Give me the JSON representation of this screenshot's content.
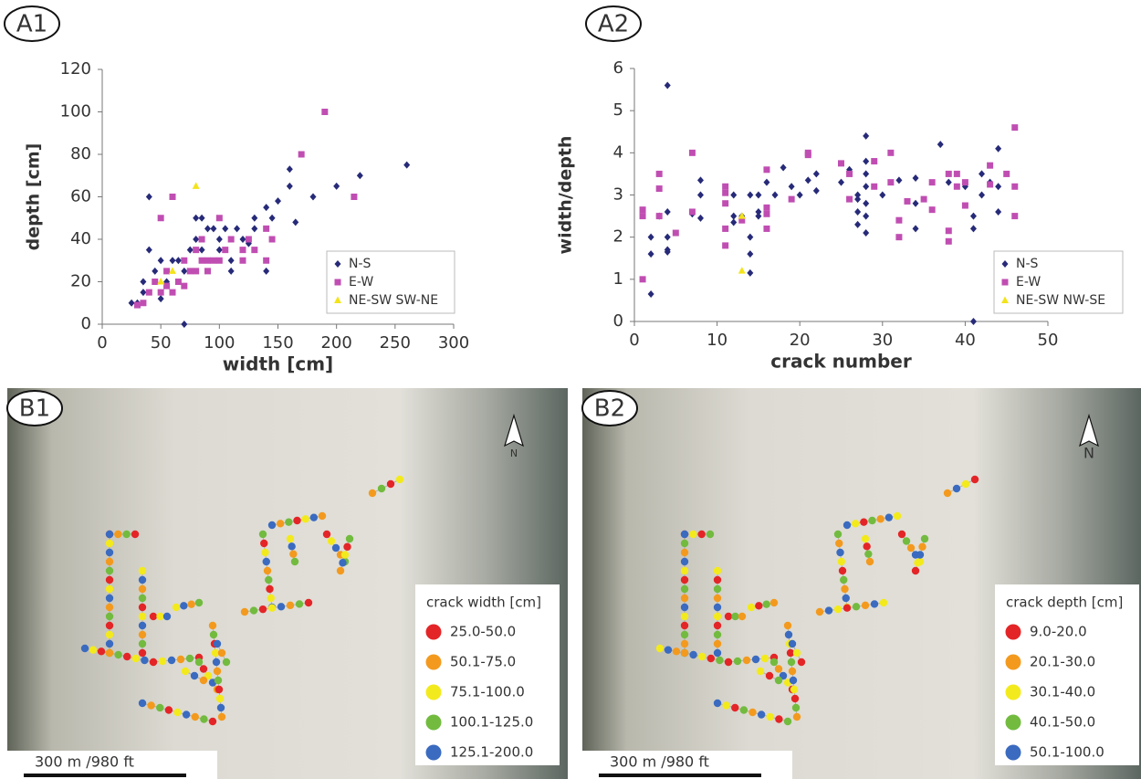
{
  "chart_data": [
    {
      "type": "scatter",
      "panel": "A1",
      "xlabel": "width [cm]",
      "ylabel": "depth [cm]",
      "xlim": [
        0,
        300
      ],
      "xticks": [
        0,
        50,
        100,
        150,
        200,
        250,
        300
      ],
      "ylim": [
        0,
        120
      ],
      "yticks": [
        0,
        20,
        40,
        60,
        80,
        100,
        120
      ],
      "legend": "lower right",
      "series": [
        {
          "name": "N-S",
          "color": "#262a78",
          "marker": "diamond",
          "x": [
            25,
            30,
            35,
            35,
            40,
            40,
            45,
            50,
            50,
            55,
            60,
            65,
            70,
            70,
            75,
            80,
            80,
            85,
            85,
            90,
            95,
            100,
            100,
            105,
            110,
            110,
            115,
            120,
            125,
            130,
            130,
            140,
            140,
            145,
            150,
            160,
            160,
            165,
            180,
            200,
            220,
            260
          ],
          "values": [
            10,
            10,
            15,
            20,
            35,
            60,
            25,
            12,
            30,
            20,
            30,
            30,
            0,
            25,
            35,
            40,
            50,
            50,
            35,
            45,
            45,
            40,
            35,
            45,
            30,
            25,
            45,
            40,
            38,
            45,
            50,
            25,
            55,
            50,
            58,
            65,
            73,
            48,
            60,
            65,
            70,
            75
          ]
        },
        {
          "name": "E-W",
          "color": "#c04eb2",
          "marker": "square",
          "x": [
            30,
            35,
            40,
            45,
            50,
            50,
            55,
            55,
            60,
            60,
            65,
            70,
            70,
            75,
            80,
            80,
            85,
            85,
            90,
            90,
            95,
            100,
            100,
            105,
            110,
            120,
            120,
            125,
            130,
            140,
            140,
            145,
            170,
            190,
            215
          ],
          "values": [
            9,
            10,
            15,
            20,
            15,
            50,
            18,
            25,
            60,
            15,
            20,
            18,
            30,
            25,
            25,
            35,
            30,
            40,
            30,
            25,
            30,
            30,
            50,
            35,
            40,
            30,
            35,
            40,
            35,
            45,
            30,
            40,
            80,
            100,
            60
          ]
        },
        {
          "name": "NE-SW SW-NE",
          "color": "#f3e31b",
          "marker": "triangle",
          "x": [
            50,
            60,
            80
          ],
          "values": [
            20,
            25,
            65
          ]
        }
      ]
    },
    {
      "type": "scatter",
      "panel": "A2",
      "xlabel": "crack number",
      "ylabel": "width/depth",
      "xlim": [
        0,
        50
      ],
      "xticks": [
        0,
        10,
        20,
        30,
        40,
        50
      ],
      "ylim": [
        0,
        6
      ],
      "yticks": [
        0,
        1,
        2,
        3,
        4,
        5,
        6
      ],
      "legend": "lower right",
      "series": [
        {
          "name": "N-S",
          "color": "#262a78",
          "marker": "diamond",
          "x": [
            2,
            2,
            2,
            3,
            4,
            4,
            4,
            4,
            4,
            7,
            8,
            8,
            8,
            12,
            12,
            12,
            13,
            14,
            14,
            14,
            14,
            15,
            15,
            15,
            16,
            17,
            18,
            19,
            20,
            21,
            22,
            22,
            25,
            26,
            27,
            27,
            27,
            27,
            28,
            28,
            28,
            28,
            28,
            28,
            28,
            30,
            32,
            34,
            34,
            34,
            37,
            38,
            40,
            41,
            41,
            41,
            42,
            42,
            43,
            44,
            44,
            44
          ],
          "values": [
            0.65,
            1.6,
            2,
            2.5,
            1.65,
            1.7,
            2,
            5.6,
            2.6,
            2.55,
            3,
            3.35,
            2.45,
            2.35,
            2.5,
            3,
            2.5,
            1.15,
            1.6,
            2,
            3,
            2.5,
            2.6,
            3,
            3.3,
            3,
            3.65,
            3.2,
            3,
            3.35,
            3.1,
            3.5,
            3.3,
            3.6,
            3,
            2.9,
            2.6,
            2.3,
            4.4,
            3.8,
            3.5,
            3.2,
            2.8,
            2.5,
            2.1,
            3,
            3.35,
            3.4,
            2.8,
            2.2,
            4.2,
            3.3,
            3.2,
            2.5,
            2.2,
            0,
            3.5,
            3,
            3.3,
            4.1,
            3.2,
            2.6
          ]
        },
        {
          "name": "E-W",
          "color": "#c04eb2",
          "marker": "square",
          "x": [
            1,
            1,
            1,
            3,
            3,
            3,
            5,
            7,
            7,
            11,
            11,
            11,
            11,
            11,
            13,
            16,
            16,
            16,
            16,
            19,
            21,
            21,
            25,
            26,
            26,
            29,
            29,
            31,
            31,
            32,
            32,
            33,
            35,
            36,
            36,
            38,
            38,
            38,
            39,
            39,
            40,
            40,
            43,
            43,
            45,
            46,
            46,
            46
          ],
          "values": [
            1,
            2.5,
            2.65,
            2.5,
            3.15,
            3.5,
            2.1,
            2.6,
            4,
            1.8,
            2.2,
            2.8,
            3.05,
            3.2,
            2.4,
            2.2,
            2.55,
            2.7,
            3.6,
            2.9,
            4,
            3.95,
            3.75,
            3.5,
            2.9,
            3.8,
            3.2,
            3.3,
            4,
            2.4,
            2,
            2.85,
            2.9,
            2.65,
            3.3,
            1.9,
            2.15,
            3.5,
            3.2,
            3.5,
            2.75,
            3.3,
            3.7,
            3.25,
            3.5,
            2.5,
            3.2,
            4.6
          ]
        },
        {
          "name": "NE-SW NW-SE",
          "color": "#f3e31b",
          "marker": "triangle",
          "x": [
            13,
            13
          ],
          "values": [
            2.5,
            1.2
          ]
        }
      ]
    }
  ],
  "maps": [
    {
      "panel": "B1",
      "north": "N",
      "scale_bar": "300 m /980 ft",
      "legend_title": "crack width [cm]",
      "classes": [
        {
          "label": "25.0-50.0",
          "color": "#e42527"
        },
        {
          "label": "50.1-75.0",
          "color": "#f39a1e"
        },
        {
          "label": "75.1-100.0",
          "color": "#f3ea1d"
        },
        {
          "label": "100.1-125.0",
          "color": "#72bb3f"
        },
        {
          "label": "125.1-200.0",
          "color": "#3a6bc0"
        }
      ]
    },
    {
      "panel": "B2",
      "north": "N",
      "scale_bar": "300 m /980 ft",
      "legend_title": "crack depth [cm]",
      "classes": [
        {
          "label": "9.0-20.0",
          "color": "#e42527"
        },
        {
          "label": "20.1-30.0",
          "color": "#f39a1e"
        },
        {
          "label": "30.1-40.0",
          "color": "#f3ea1d"
        },
        {
          "label": "40.1-50.0",
          "color": "#72bb3f"
        },
        {
          "label": "50.1-100.0",
          "color": "#3a6bc0"
        }
      ]
    }
  ]
}
